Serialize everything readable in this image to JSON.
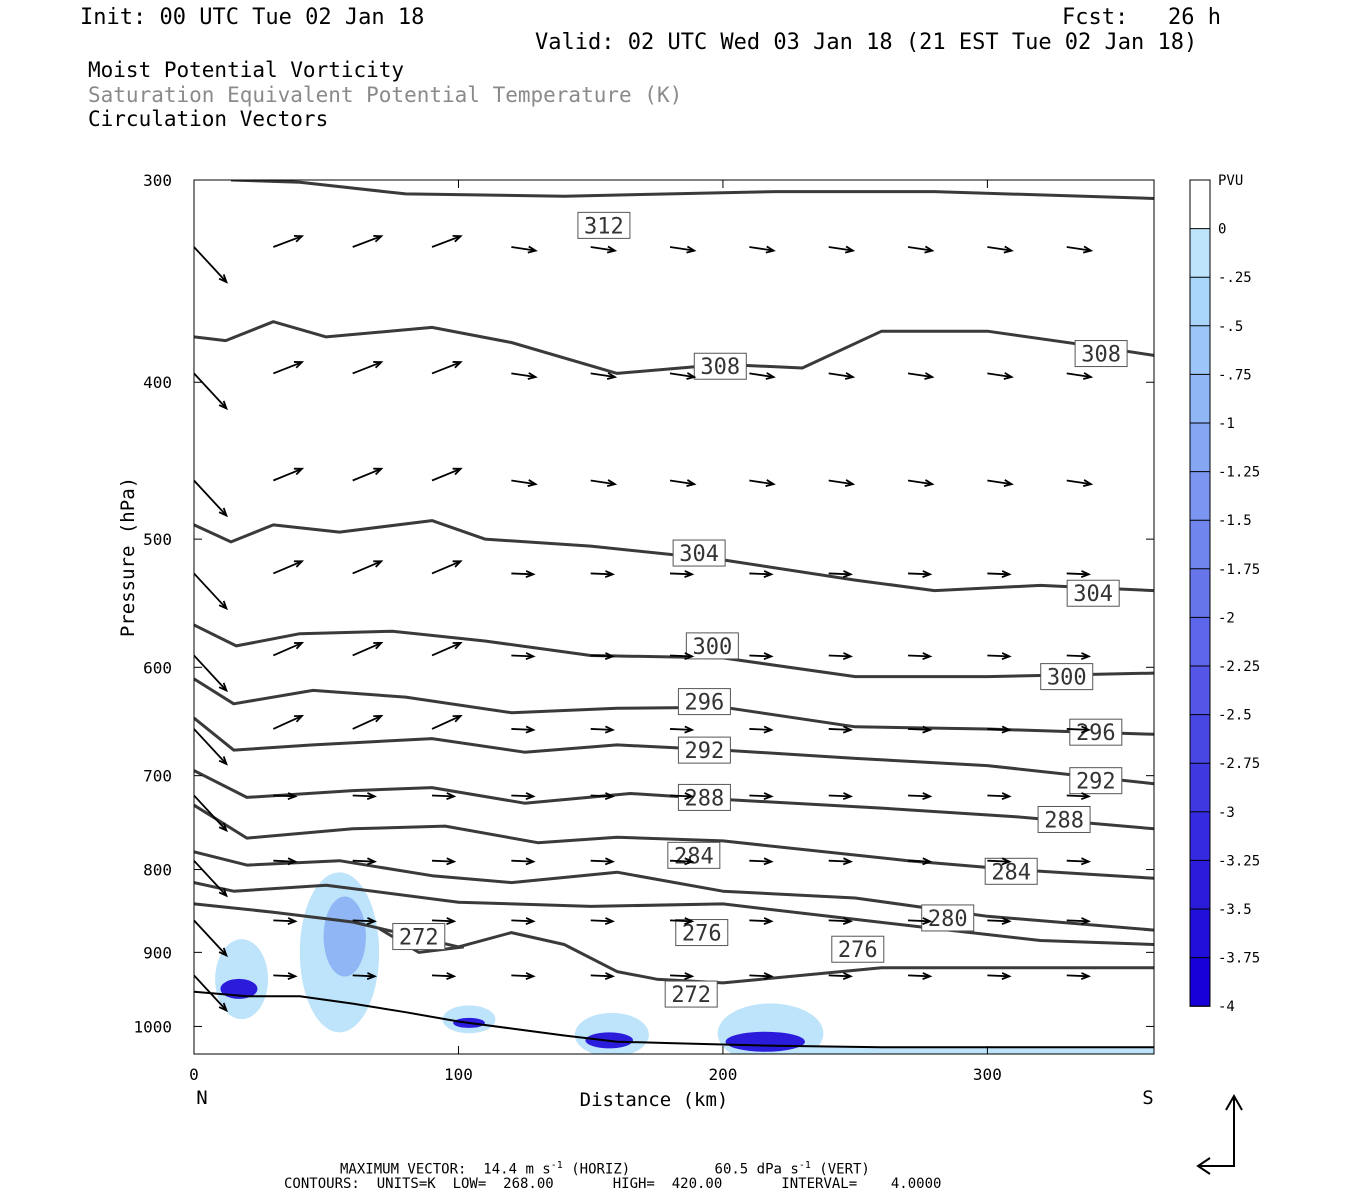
{
  "header": {
    "init": "Init: 00 UTC Tue 02 Jan 18",
    "fcst": "Fcst:   26 h",
    "valid": "Valid: 02 UTC Wed 03 Jan 18 (21 EST Tue 02 Jan 18)"
  },
  "fields": {
    "line1": "Moist Potential Vorticity",
    "line2": "Saturation Equivalent Potential Temperature (K)",
    "line3": "Circulation Vectors"
  },
  "footer": {
    "max_vector_label": "MAXIMUM VECTOR:",
    "horiz_value": "14.4 m s",
    "horiz_unit_suffix": " (HORIZ)",
    "vert_value": "60.5 dPa s",
    "vert_unit_suffix": " (VERT)",
    "exponent": "-1",
    "contours": "CONTOURS:  UNITS=K  LOW=  268.00       HIGH=  420.00       INTERVAL=    4.0000"
  },
  "chart_data": {
    "type": "cross-section",
    "xlabel": "Distance (km)",
    "ylabel": "Pressure (hPa)",
    "xlim": [
      0,
      363
    ],
    "ylim": [
      1040,
      300
    ],
    "y_scale": "log",
    "x_ticks": [
      0,
      100,
      200,
      300
    ],
    "y_ticks": [
      300,
      400,
      500,
      600,
      700,
      800,
      900,
      1000
    ],
    "left_end_label": "N",
    "right_end_label": "S",
    "colorbar": {
      "title": "PVU",
      "labels": [
        "0",
        "-.25",
        "-.5",
        "-.75",
        "-1",
        "-1.25",
        "-1.5",
        "-1.75",
        "-2",
        "-2.25",
        "-2.5",
        "-2.75",
        "-3",
        "-3.25",
        "-3.5",
        "-3.75",
        "-4"
      ],
      "colors": [
        "#ffffff",
        "#bde4fb",
        "#aad5fa",
        "#9cc6f8",
        "#90b6f5",
        "#85a6f3",
        "#7b95f0",
        "#7185ee",
        "#6775eb",
        "#5d66e9",
        "#5356e6",
        "#4947e4",
        "#3f38e1",
        "#352adf",
        "#2b1cdc",
        "#210fda",
        "#1700d8"
      ]
    },
    "contours": [
      {
        "label": "312",
        "p": [
          [
            14,
            300
          ],
          [
            40,
            301
          ],
          [
            80,
            306
          ],
          [
            140,
            307
          ],
          [
            180,
            306
          ],
          [
            220,
            305
          ],
          [
            280,
            305
          ],
          [
            363,
            308
          ]
        ],
        "labels_at": [
          [
            155,
            320
          ]
        ]
      },
      {
        "label": "308",
        "p": [
          [
            0,
            375
          ],
          [
            12,
            377
          ],
          [
            30,
            367
          ],
          [
            50,
            375
          ],
          [
            90,
            370
          ],
          [
            120,
            378
          ],
          [
            160,
            395
          ],
          [
            200,
            390
          ],
          [
            230,
            392
          ],
          [
            260,
            372
          ],
          [
            300,
            372
          ],
          [
            340,
            380
          ],
          [
            363,
            385
          ]
        ],
        "labels_at": [
          [
            199,
            391
          ],
          [
            343,
            384
          ]
        ]
      },
      {
        "label": "304",
        "p": [
          [
            0,
            490
          ],
          [
            14,
            502
          ],
          [
            30,
            490
          ],
          [
            55,
            495
          ],
          [
            90,
            487
          ],
          [
            110,
            500
          ],
          [
            150,
            505
          ],
          [
            200,
            515
          ],
          [
            250,
            530
          ],
          [
            280,
            538
          ],
          [
            320,
            534
          ],
          [
            363,
            538
          ]
        ],
        "labels_at": [
          [
            191,
            510
          ],
          [
            340,
            540
          ]
        ]
      },
      {
        "label": "300",
        "p": [
          [
            0,
            565
          ],
          [
            16,
            582
          ],
          [
            40,
            572
          ],
          [
            75,
            570
          ],
          [
            110,
            578
          ],
          [
            150,
            590
          ],
          [
            200,
            592
          ],
          [
            250,
            608
          ],
          [
            300,
            608
          ],
          [
            363,
            605
          ]
        ],
        "labels_at": [
          [
            196,
            582
          ],
          [
            330,
            608
          ]
        ]
      },
      {
        "label": "296",
        "p": [
          [
            0,
            610
          ],
          [
            15,
            632
          ],
          [
            45,
            620
          ],
          [
            80,
            626
          ],
          [
            120,
            640
          ],
          [
            160,
            636
          ],
          [
            200,
            635
          ],
          [
            250,
            653
          ],
          [
            300,
            655
          ],
          [
            363,
            660
          ]
        ],
        "labels_at": [
          [
            193,
            630
          ],
          [
            341,
            658
          ]
        ]
      },
      {
        "label": "292",
        "p": [
          [
            0,
            645
          ],
          [
            15,
            675
          ],
          [
            45,
            670
          ],
          [
            90,
            664
          ],
          [
            125,
            677
          ],
          [
            160,
            670
          ],
          [
            200,
            675
          ],
          [
            250,
            683
          ],
          [
            300,
            690
          ],
          [
            363,
            708
          ]
        ],
        "labels_at": [
          [
            193,
            675
          ],
          [
            341,
            705
          ]
        ]
      },
      {
        "label": "288",
        "p": [
          [
            0,
            695
          ],
          [
            20,
            722
          ],
          [
            60,
            715
          ],
          [
            90,
            712
          ],
          [
            125,
            728
          ],
          [
            165,
            718
          ],
          [
            200,
            724
          ],
          [
            260,
            733
          ],
          [
            310,
            742
          ],
          [
            363,
            755
          ]
        ],
        "labels_at": [
          [
            193,
            722
          ],
          [
            329,
            745
          ]
        ]
      },
      {
        "label": "284",
        "p": [
          [
            0,
            730
          ],
          [
            20,
            765
          ],
          [
            60,
            755
          ],
          [
            95,
            752
          ],
          [
            130,
            770
          ],
          [
            160,
            764
          ],
          [
            200,
            768
          ],
          [
            270,
            790
          ],
          [
            310,
            800
          ],
          [
            363,
            810
          ]
        ],
        "labels_at": [
          [
            189,
            784
          ],
          [
            309,
            802
          ]
        ]
      },
      {
        "label": "280",
        "p": [
          [
            0,
            780
          ],
          [
            20,
            795
          ],
          [
            55,
            790
          ],
          [
            90,
            807
          ],
          [
            120,
            815
          ],
          [
            160,
            803
          ],
          [
            200,
            825
          ],
          [
            250,
            833
          ],
          [
            300,
            855
          ],
          [
            363,
            872
          ]
        ],
        "labels_at": [
          [
            285,
            857
          ]
        ]
      },
      {
        "label": "276",
        "p": [
          [
            0,
            815
          ],
          [
            15,
            825
          ],
          [
            50,
            818
          ],
          [
            100,
            838
          ],
          [
            150,
            843
          ],
          [
            200,
            840
          ],
          [
            240,
            855
          ],
          [
            280,
            870
          ],
          [
            320,
            885
          ],
          [
            363,
            890
          ]
        ],
        "labels_at": [
          [
            192,
            875
          ],
          [
            251,
            896
          ]
        ]
      },
      {
        "label": "276b",
        "p": [
          [
            0,
            840
          ],
          [
            30,
            850
          ],
          [
            60,
            862
          ],
          [
            100,
            893
          ],
          [
            120,
            875
          ],
          [
            140,
            890
          ],
          [
            160,
            925
          ],
          [
            175,
            935
          ],
          [
            200,
            940
          ],
          [
            260,
            920
          ],
          [
            320,
            920
          ],
          [
            363,
            920
          ]
        ],
        "labels_at": []
      },
      {
        "label": "272",
        "p": [
          [
            70,
            870
          ],
          [
            85,
            900
          ],
          [
            102,
            893
          ]
        ],
        "labels_at": [
          [
            85,
            880
          ],
          [
            188,
            955
          ]
        ]
      }
    ],
    "arrows_note": "circulation vectors shown as black arrows on a regular grid"
  }
}
